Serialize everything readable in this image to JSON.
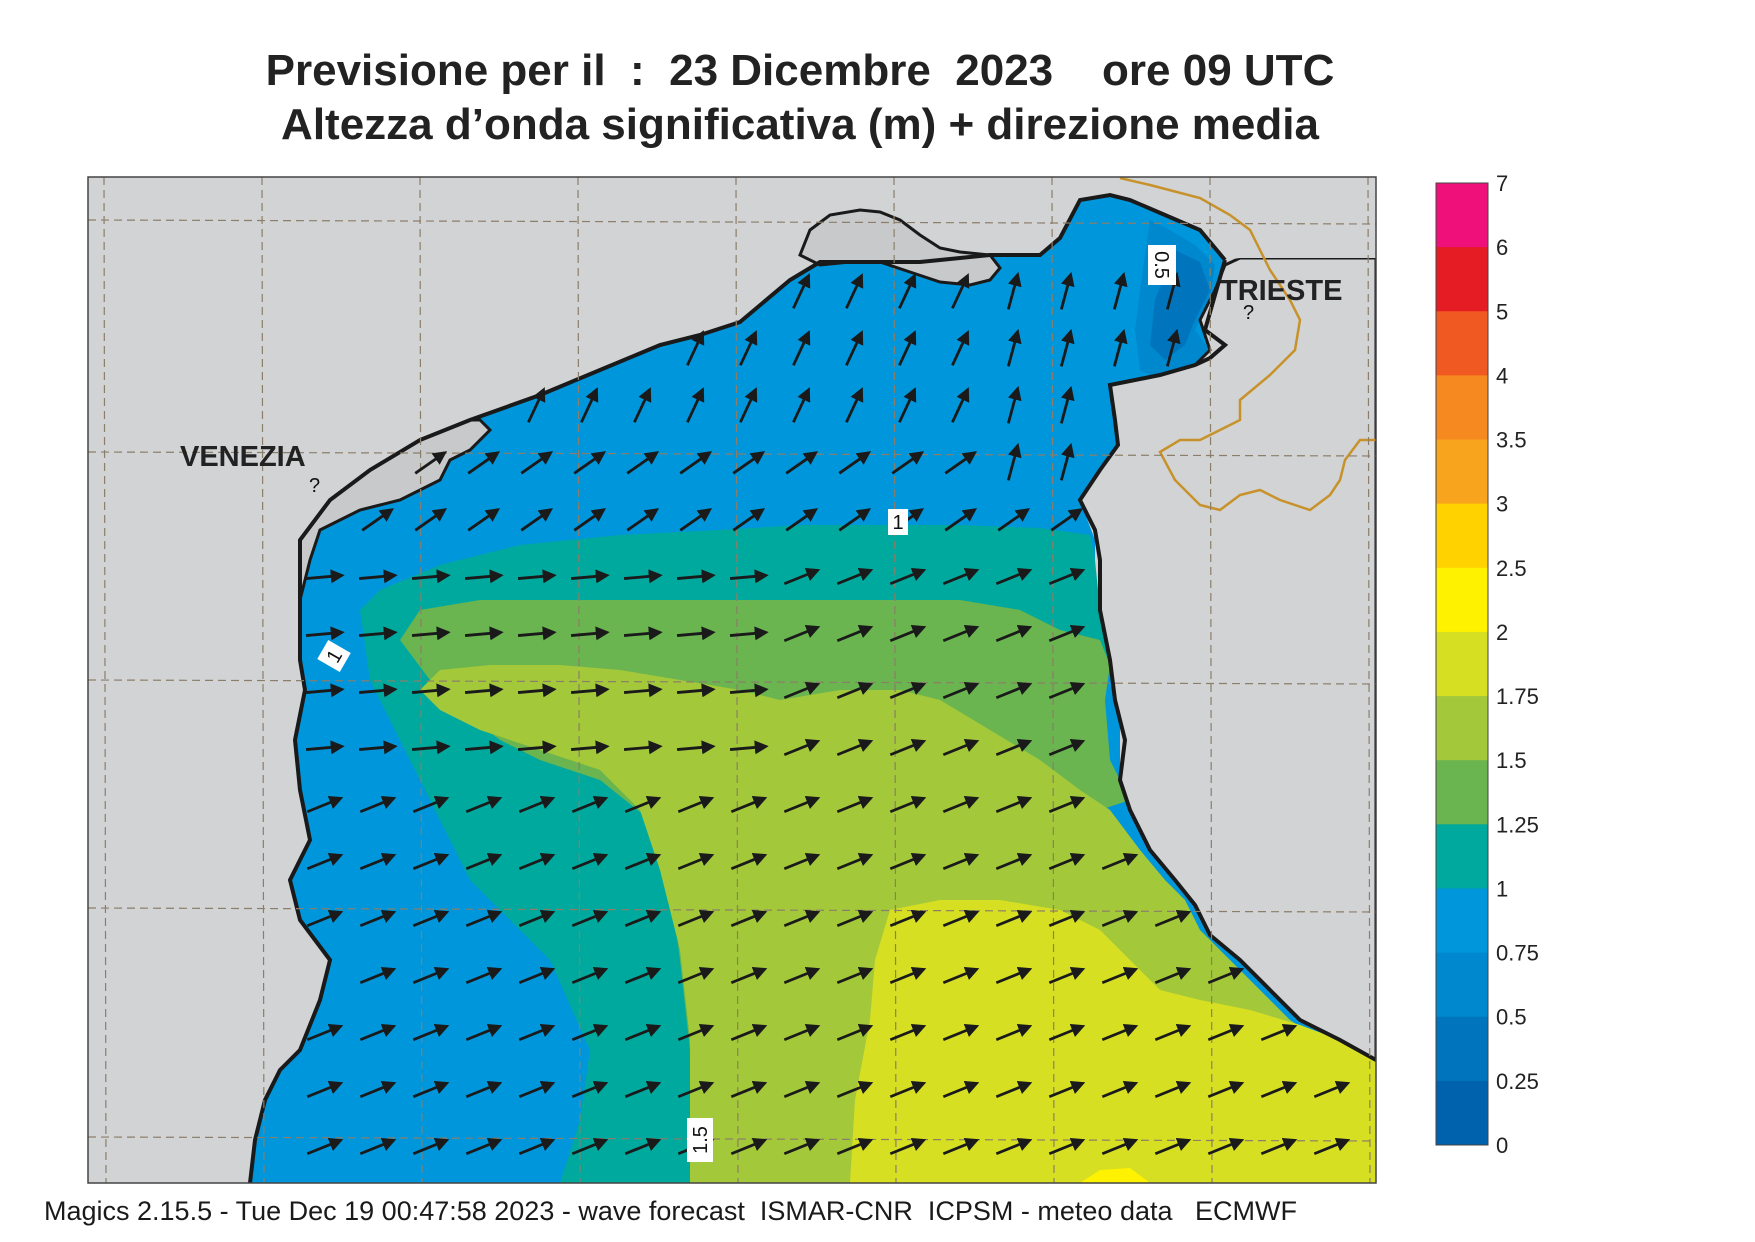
{
  "title": {
    "line1": "Previsione per il  :  23 Dicembre  2023    ore 09 UTC",
    "line2": "Altezza d’onda significativa (m) + direzione media"
  },
  "cities": {
    "venezia": "VENEZIA",
    "trieste": "TRIESTE"
  },
  "contour_labels": {
    "trieste_bay": "0.5",
    "north": "1",
    "west": "1",
    "south": "1.5"
  },
  "legend": {
    "items": [
      {
        "label": "7",
        "color": "#f0107a"
      },
      {
        "label": "6",
        "color": "#e51c24"
      },
      {
        "label": "5",
        "color": "#f05a22"
      },
      {
        "label": "4",
        "color": "#f6891f"
      },
      {
        "label": "3.5",
        "color": "#f8a41c"
      },
      {
        "label": "3",
        "color": "#ffd200"
      },
      {
        "label": "2.5",
        "color": "#fff200"
      },
      {
        "label": "2",
        "color": "#d7df23"
      },
      {
        "label": "1.75",
        "color": "#a3c83a"
      },
      {
        "label": "1.5",
        "color": "#6ab550"
      },
      {
        "label": "1.25",
        "color": "#00a99d"
      },
      {
        "label": "1",
        "color": "#0096db"
      },
      {
        "label": "0.75",
        "color": "#0088cf"
      },
      {
        "label": "0.5",
        "color": "#0075bd"
      },
      {
        "label": "0.25",
        "color": "#0062ac"
      },
      {
        "label": "0",
        "color": ""
      }
    ]
  },
  "wave_direction": "ENE (towards north-east, ~70°)",
  "footer": "Magics 2.15.5 - Tue Dec 19 00:47:58 2023 - wave forecast  ISMAR-CNR  ICPSM - meteo data   ECMWF",
  "colors": {
    "land": "#d2d3d5",
    "coast": "#1a1a1a",
    "border": "#c8922a",
    "arrow": "#1a1a1a",
    "grid": "#8b7e6a"
  }
}
